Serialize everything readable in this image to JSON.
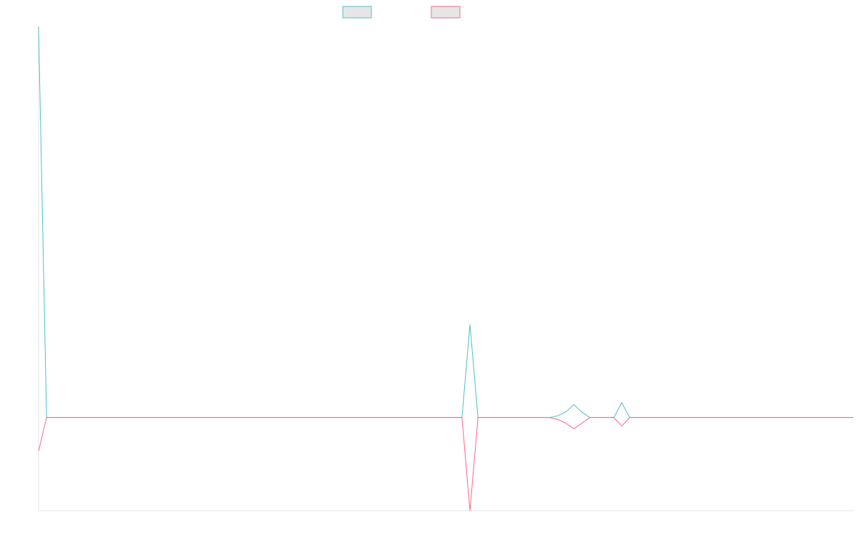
{
  "chart_data": {
    "type": "line",
    "title": "",
    "xlabel": "",
    "ylabel": "",
    "grid": false,
    "legend": {
      "position": "top-center",
      "labels_visible": false
    },
    "x": [
      0,
      1,
      2,
      3,
      4,
      5,
      6,
      7,
      8,
      9,
      10,
      11,
      12,
      13,
      14,
      15,
      16,
      17,
      18,
      19,
      20,
      21,
      22,
      23,
      24,
      25,
      26,
      27,
      28,
      29,
      30,
      31,
      32,
      33,
      34,
      35,
      36,
      37,
      38,
      39,
      40,
      41,
      42,
      43,
      44,
      45,
      46,
      47,
      48,
      49,
      50,
      51,
      52,
      53,
      54,
      55,
      56,
      57,
      58,
      59,
      60,
      61,
      62,
      63,
      64,
      65,
      66,
      67,
      68,
      69,
      70,
      71,
      72,
      73,
      74,
      75,
      76,
      77,
      78,
      79,
      80,
      81,
      82,
      83,
      84,
      85,
      86,
      87,
      88,
      89,
      90,
      91,
      92,
      93,
      94,
      95,
      96,
      97,
      98,
      99,
      100,
      101,
      102
    ],
    "ylim": [
      -1.0,
      4.2
    ],
    "series": [
      {
        "color": "#4bc0c0",
        "values": [
          4.2,
          0,
          0,
          0,
          0,
          0,
          0,
          0,
          0,
          0,
          0,
          0,
          0,
          0,
          0,
          0,
          0,
          0,
          0,
          0,
          0,
          0,
          0,
          0,
          0,
          0,
          0,
          0,
          0,
          0,
          0,
          0,
          0,
          0,
          0,
          0,
          0,
          0,
          0,
          0,
          0,
          0,
          0,
          0,
          0,
          0,
          0,
          0,
          0,
          0,
          0,
          0,
          0,
          0,
          1.0,
          0,
          0,
          0,
          0,
          0,
          0,
          0,
          0,
          0,
          0,
          0.02,
          0.06,
          0.14,
          0.06,
          0,
          0,
          0,
          0,
          0.16,
          0,
          0,
          0,
          0,
          0,
          0,
          0,
          0,
          0,
          0,
          0,
          0,
          0,
          0,
          0,
          0,
          0,
          0,
          0,
          0,
          0,
          0,
          0,
          0,
          0,
          0,
          0,
          0,
          0
        ]
      },
      {
        "color": "#ff6384",
        "values": [
          -0.36,
          0,
          0,
          0,
          0,
          0,
          0,
          0,
          0,
          0,
          0,
          0,
          0,
          0,
          0,
          0,
          0,
          0,
          0,
          0,
          0,
          0,
          0,
          0,
          0,
          0,
          0,
          0,
          0,
          0,
          0,
          0,
          0,
          0,
          0,
          0,
          0,
          0,
          0,
          0,
          0,
          0,
          0,
          0,
          0,
          0,
          0,
          0,
          0,
          0,
          0,
          0,
          0,
          0,
          -1.0,
          0,
          0,
          0,
          0,
          0,
          0,
          0,
          0,
          0,
          0,
          -0.02,
          -0.06,
          -0.12,
          -0.06,
          0,
          0,
          0,
          0,
          -0.09,
          0,
          0,
          0,
          0,
          0,
          0,
          0,
          0,
          0,
          0,
          0,
          0,
          0,
          0,
          0,
          0,
          0,
          0,
          0,
          0,
          0,
          0,
          0,
          0,
          0,
          0,
          0,
          0,
          0
        ]
      }
    ]
  }
}
